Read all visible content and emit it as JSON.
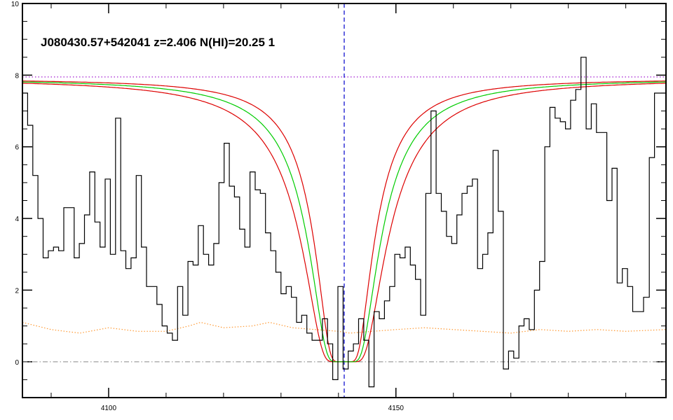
{
  "chart_data": {
    "type": "line",
    "title": "J080430.57+542041 z=2.406 N(HI)=20.25 1",
    "xlabel": "",
    "ylabel": "",
    "xlim": [
      4085,
      4197
    ],
    "ylim": [
      -1,
      10
    ],
    "x_ticks": [
      4100,
      4150
    ],
    "y_ticks": [
      0,
      2,
      4,
      6,
      8,
      10
    ],
    "grid": false,
    "line_center": 4141,
    "continuum_level": 7.95,
    "zero_level": 0,
    "colors": {
      "flux": "#000000",
      "model": "#00cc00",
      "model_bounds": "#dd0000",
      "error": "#ff9933",
      "continuum": "#9900cc",
      "center": "#0000cc",
      "zero": "#888888"
    },
    "model_params": {
      "center": 4141,
      "amplitude": 7.9,
      "wavelength_scale": 6.0,
      "bound_scales": [
        5.0,
        7.1
      ],
      "core_width": 1.2
    },
    "flux": {
      "x": [
        4085.0,
        4085.9,
        4086.8,
        4087.7,
        4088.6,
        4089.5,
        4090.4,
        4091.3,
        4092.2,
        4093.1,
        4094.0,
        4094.9,
        4095.8,
        4096.7,
        4097.6,
        4098.5,
        4099.4,
        4100.3,
        4101.2,
        4102.1,
        4103.0,
        4103.9,
        4104.8,
        4105.7,
        4106.6,
        4107.5,
        4108.4,
        4109.3,
        4110.2,
        4111.1,
        4112.0,
        4112.9,
        4113.8,
        4114.7,
        4115.6,
        4116.5,
        4117.4,
        4118.3,
        4119.2,
        4120.1,
        4121.0,
        4121.9,
        4122.8,
        4123.7,
        4124.6,
        4125.5,
        4126.4,
        4127.3,
        4128.2,
        4129.1,
        4130.0,
        4130.9,
        4131.8,
        4132.7,
        4133.6,
        4134.5,
        4135.4,
        4136.3,
        4137.2,
        4138.1,
        4139.0,
        4139.9,
        4140.8,
        4141.7,
        4142.6,
        4143.5,
        4144.4,
        4145.3,
        4146.2,
        4147.1,
        4148.0,
        4148.9,
        4149.8,
        4150.7,
        4151.6,
        4152.5,
        4153.4,
        4154.3,
        4155.2,
        4156.1,
        4157.0,
        4157.9,
        4158.8,
        4159.7,
        4160.6,
        4161.5,
        4162.4,
        4163.3,
        4164.2,
        4165.1,
        4166.0,
        4166.9,
        4167.8,
        4168.7,
        4169.6,
        4170.5,
        4171.4,
        4172.3,
        4173.2,
        4174.1,
        4175.0,
        4175.9,
        4176.8,
        4177.7,
        4178.6,
        4179.5,
        4180.4,
        4181.3,
        4182.2,
        4183.1,
        4184.0,
        4184.9,
        4185.8,
        4186.7,
        4187.6,
        4188.5,
        4189.4,
        4190.3,
        4191.2,
        4192.1,
        4193.1,
        4194.1,
        4195.0,
        4196.0
      ],
      "y": [
        7.5,
        6.6,
        5.2,
        4.0,
        2.9,
        3.1,
        3.2,
        3.1,
        4.3,
        4.3,
        2.9,
        3.3,
        4.1,
        5.3,
        3.9,
        3.2,
        5.1,
        3.0,
        6.8,
        3.1,
        2.6,
        2.9,
        5.2,
        3.2,
        2.1,
        2.1,
        1.6,
        1.0,
        0.8,
        0.6,
        2.1,
        1.3,
        2.8,
        2.7,
        3.8,
        3.0,
        2.7,
        3.3,
        5.0,
        6.1,
        4.9,
        4.6,
        3.7,
        3.2,
        5.3,
        4.8,
        4.7,
        3.6,
        3.1,
        2.5,
        1.9,
        2.1,
        1.8,
        1.1,
        1.3,
        0.8,
        0.6,
        0.6,
        1.2,
        0.5,
        -0.5,
        2.1,
        -0.2,
        0.3,
        0.5,
        1.2,
        0.6,
        -0.7,
        1.4,
        1.2,
        1.7,
        2.1,
        3.0,
        2.9,
        3.2,
        2.7,
        2.3,
        1.3,
        4.7,
        7.0,
        4.7,
        4.2,
        3.5,
        3.3,
        4.1,
        4.7,
        4.9,
        5.1,
        2.6,
        3.0,
        3.6,
        5.9,
        4.2,
        -0.2,
        0.3,
        0.1,
        1.0,
        1.2,
        0.9,
        2.0,
        2.8,
        6.0,
        7.1,
        6.8,
        6.7,
        6.5,
        7.3,
        7.6,
        8.5,
        6.5,
        7.2,
        6.4,
        6.4,
        4.5,
        5.4,
        2.2,
        2.6,
        2.1,
        1.4,
        1.4,
        1.8,
        5.7,
        7.5,
        7.5
      ]
    },
    "error": {
      "x": [
        4085,
        4090,
        4095,
        4100,
        4105,
        4110,
        4114,
        4116,
        4120,
        4125,
        4128,
        4132,
        4136,
        4140,
        4142,
        4146,
        4150,
        4155,
        4160,
        4165,
        4170,
        4175,
        4180,
        4185,
        4190,
        4197
      ],
      "y": [
        1.1,
        0.9,
        0.8,
        0.95,
        0.85,
        0.85,
        1.0,
        1.1,
        0.95,
        1.0,
        1.1,
        0.95,
        0.9,
        0.85,
        0.8,
        0.85,
        0.9,
        0.95,
        0.9,
        0.85,
        0.8,
        0.9,
        0.85,
        0.9,
        0.85,
        0.9
      ]
    }
  }
}
